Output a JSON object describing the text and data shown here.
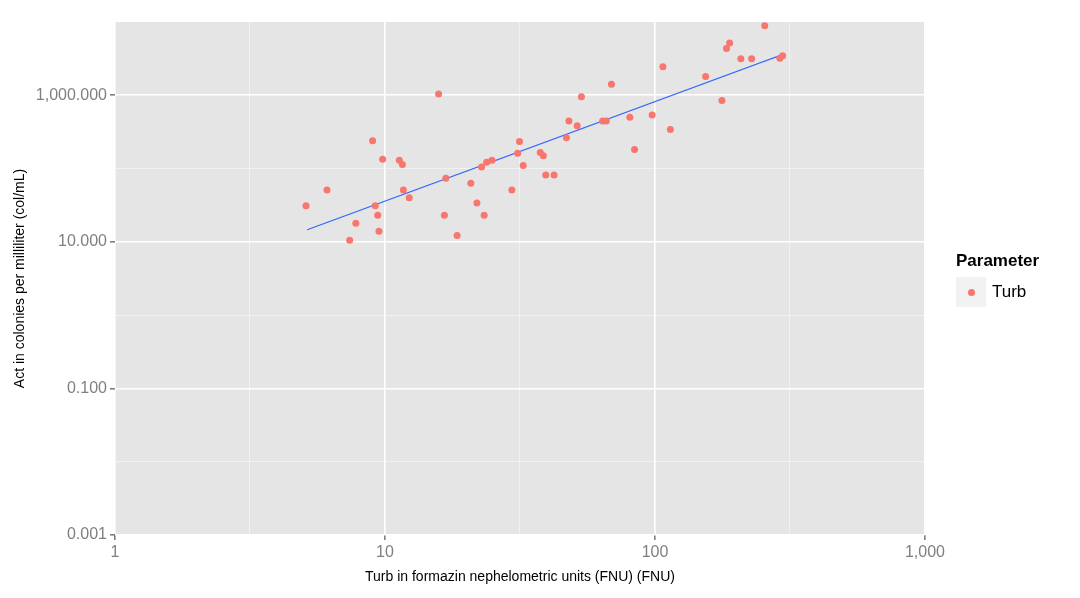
{
  "chart_data": {
    "type": "scatter",
    "xlabel": "Turb in formazin nephelometric units (FNU) (FNU)",
    "ylabel": "Act in colonies per milliliter (col/mL)",
    "legend_title": "Parameter",
    "log": "xy",
    "grid": true,
    "legend": "right",
    "marker": "circle",
    "xlim": [
      1,
      1000
    ],
    "ylim": [
      0.001,
      10000
    ],
    "xticks": [
      1,
      {
        "value": 3.16,
        "label": null
      },
      10,
      {
        "value": 31.6,
        "label": null
      },
      100,
      {
        "value": 316,
        "label": null
      },
      {
        "value": 1000,
        "label": "1,000"
      }
    ],
    "yticks": [
      {
        "value": 0.001,
        "label": "0.001"
      },
      {
        "value": 0.01,
        "label": null
      },
      {
        "value": 0.1,
        "label": "0.100"
      },
      {
        "value": 1,
        "label": null
      },
      {
        "value": 10,
        "label": "10.000"
      },
      {
        "value": 100,
        "label": null
      },
      {
        "value": 1000,
        "label": "1,000.000"
      }
    ],
    "series": [
      {
        "name": "Turb",
        "color": "#f8766d",
        "x": [
          5.1,
          6.1,
          7.4,
          7.8,
          9.0,
          9.2,
          9.4,
          9.5,
          9.8,
          11.3,
          11.6,
          11.7,
          12.3,
          15.8,
          16.8,
          16.6,
          18.5,
          20.8,
          21.9,
          22.8,
          23.3,
          23.8,
          24.9,
          29.5,
          31,
          31.5,
          32.5,
          37.6,
          38.6,
          39.4,
          42.3,
          47,
          48,
          51.5,
          53.4,
          64,
          66,
          69,
          80.7,
          84,
          97.6,
          107,
          114,
          154,
          177,
          184,
          189,
          208,
          228,
          255,
          290,
          297
        ],
        "values": [
          31,
          51,
          10.5,
          18,
          240,
          31,
          23,
          14,
          134,
          130,
          114,
          51,
          40,
          1040,
          74,
          23,
          12.2,
          63,
          34,
          105,
          23,
          122,
          130,
          51,
          162,
          235,
          110,
          166,
          150,
          82,
          82,
          263,
          445,
          385,
          955,
          445,
          445,
          1420,
          500,
          182,
          540,
          2450,
          340,
          1800,
          850,
          4360,
          5150,
          3150,
          3150,
          8900,
          3200,
          3470
        ]
      },
      {
        "type": "line",
        "marker": "none",
        "color": "#3366ff",
        "x": [
          5.15,
          285
        ],
        "values": [
          14.6,
          3400
        ]
      }
    ]
  }
}
